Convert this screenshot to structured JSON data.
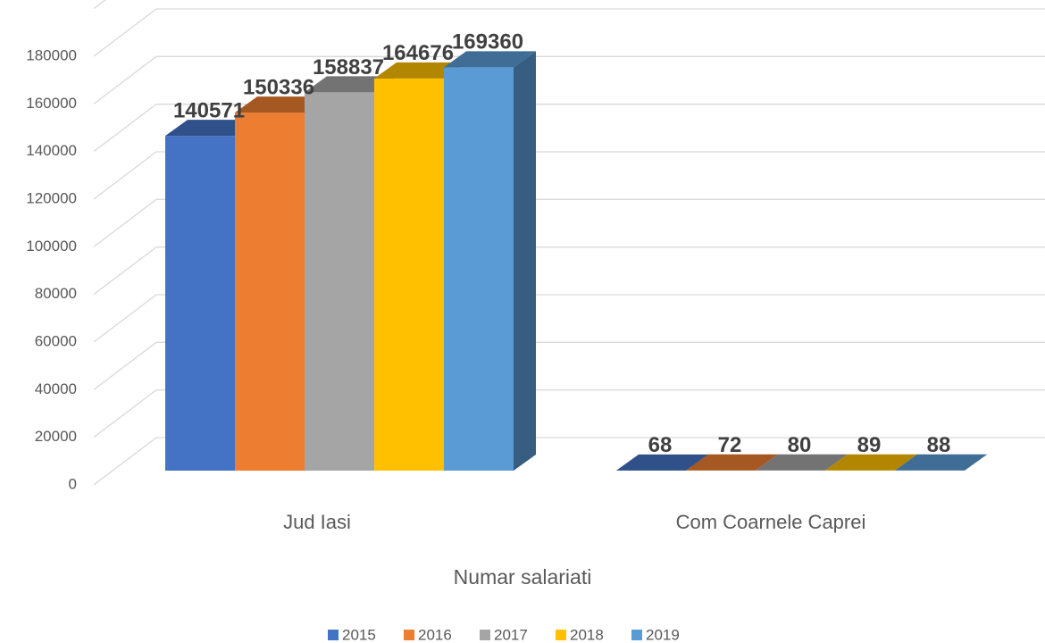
{
  "chart_data": {
    "type": "bar3d",
    "x_label": "Numar salariati",
    "categories": [
      "Jud Iasi",
      "Com Coarnele Caprei"
    ],
    "series": [
      {
        "name": "2015",
        "color": "#4472c4",
        "values": [
          140571,
          68
        ]
      },
      {
        "name": "2016",
        "color": "#ed7d31",
        "values": [
          150336,
          72
        ]
      },
      {
        "name": "2017",
        "color": "#a5a5a5",
        "values": [
          158837,
          80
        ]
      },
      {
        "name": "2018",
        "color": "#ffc000",
        "values": [
          164676,
          89
        ]
      },
      {
        "name": "2019",
        "color": "#5b9bd5",
        "values": [
          169360,
          88
        ]
      }
    ],
    "ylim": [
      0,
      180000
    ],
    "yticks": [
      0,
      20000,
      40000,
      60000,
      80000,
      100000,
      120000,
      140000,
      160000,
      180000
    ],
    "grid": true,
    "legend": "bottom"
  }
}
